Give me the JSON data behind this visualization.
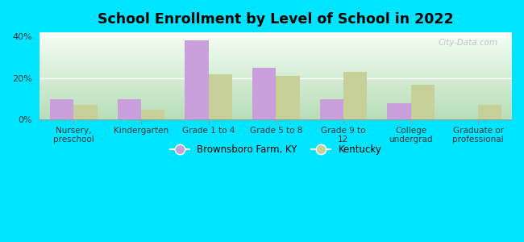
{
  "title": "School Enrollment by Level of School in 2022",
  "categories": [
    "Nursery,\npreschool",
    "Kindergarten",
    "Grade 1 to 4",
    "Grade 5 to 8",
    "Grade 9 to\n12",
    "College\nundergrad",
    "Graduate or\nprofessional"
  ],
  "brownsboro_values": [
    10,
    10,
    38,
    25,
    10,
    8,
    0
  ],
  "kentucky_values": [
    7,
    5,
    22,
    21,
    23,
    17,
    7
  ],
  "brownsboro_color": "#c9a0dc",
  "kentucky_color": "#c8d09a",
  "ylim": [
    0,
    42
  ],
  "yticks": [
    0,
    20,
    40
  ],
  "ytick_labels": [
    "0%",
    "20%",
    "40%"
  ],
  "figure_bg": "#00e5ff",
  "legend_label1": "Brownsboro Farm, KY",
  "legend_label2": "Kentucky",
  "watermark": "City-Data.com",
  "bar_width": 0.35
}
